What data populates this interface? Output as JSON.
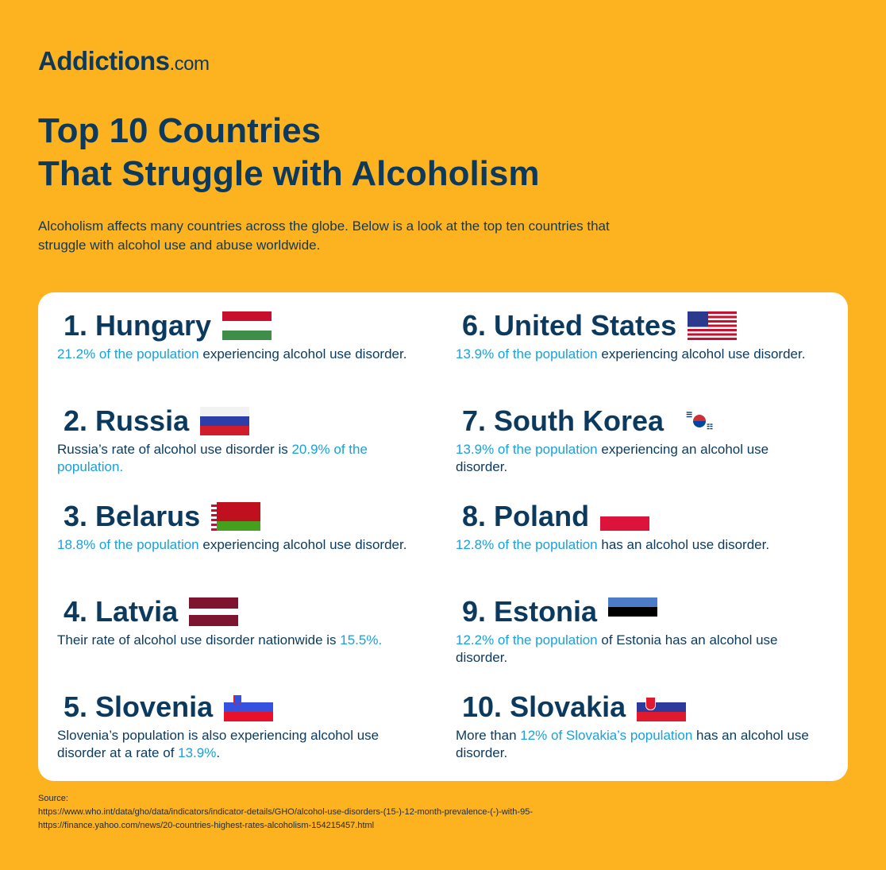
{
  "logo": {
    "main": "Addictions",
    "suffix": ".com"
  },
  "title": {
    "line1": "Top 10 Countries",
    "line2": "That Struggle with Alcoholism"
  },
  "intro": "Alcoholism affects many countries across the globe. Below is a look at the top ten countries that struggle with alcohol use and abuse worldwide.",
  "items": [
    {
      "rank": "1.",
      "country": "Hungary",
      "a": "21.2% of the population",
      "b": " experiencing alcohol use disorder."
    },
    {
      "rank": "2.",
      "country": "Russia",
      "a": "Russia’s rate of alcohol use disorder is ",
      "b": "20.9% of the population."
    },
    {
      "rank": "3.",
      "country": "Belarus",
      "a": "18.8% of the population",
      "b": " experiencing alcohol use disorder."
    },
    {
      "rank": "4.",
      "country": "Latvia",
      "a": "Their rate of alcohol use disorder nationwide is ",
      "b": "15.5%."
    },
    {
      "rank": "5.",
      "country": "Slovenia",
      "a": "Slovenia’s population is also experiencing alcohol use disorder at a rate of ",
      "b": "13.9%",
      "c": "."
    },
    {
      "rank": "6.",
      "country": "United States",
      "a": "13.9% of the population",
      "b": " experiencing alcohol use disorder."
    },
    {
      "rank": "7.",
      "country": "South Korea",
      "a": "13.9% of the population",
      "b": " experiencing an alcohol use disorder."
    },
    {
      "rank": "8.",
      "country": "Poland",
      "a": "12.8% of the population",
      "b": " has an alcohol use disorder."
    },
    {
      "rank": "9.",
      "country": "Estonia",
      "a": "12.2% of the population",
      "b": " of Estonia has an alcohol use disorder."
    },
    {
      "rank": "10.",
      "country": "Slovakia",
      "a": "More than ",
      "b": "12% of Slovakia’s population",
      "c": " has an alcohol use disorder."
    }
  ],
  "source": {
    "label": "Source:",
    "links": [
      "https://www.who.int/data/gho/data/indicators/indicator-details/GHO/alcohol-use-disorders-(15-)-12-month-prevalence-(-)-with-95-",
      "https://finance.yahoo.com/news/20-countries-highest-rates-alcoholism-154215457.html"
    ]
  },
  "colors": {
    "background": "#FDB21F",
    "navy": "#0B3A5E",
    "highlight": "#1AA0DB"
  }
}
